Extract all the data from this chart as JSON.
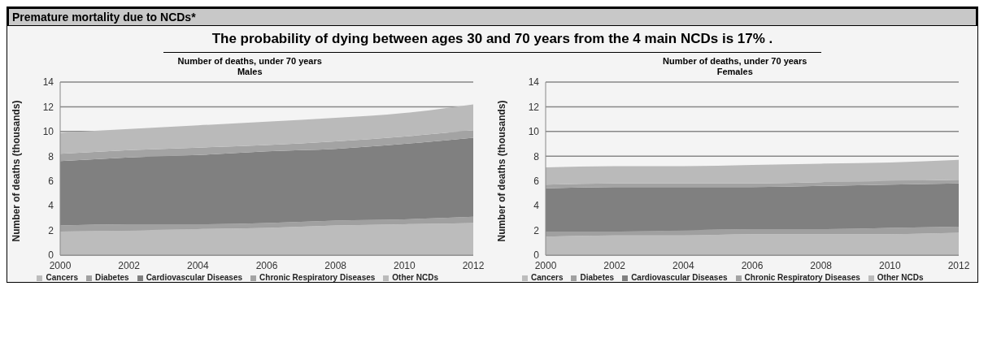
{
  "chart_data": [
    {
      "type": "other",
      "title": "Premature mortality due to NCDs*",
      "subtitle": "The probability of dying between ages 30 and 70 years from the 4 main NCDs is 17% ."
    },
    {
      "type": "area",
      "stacked": true,
      "title": "Number of deaths, under 70 years",
      "subtitle": "Males",
      "ylabel": "Number of deaths (thousands)",
      "x": [
        2000,
        2002,
        2004,
        2006,
        2008,
        2010,
        2012
      ],
      "xlim": [
        2000,
        2012
      ],
      "xticks": [
        2000,
        2002,
        2004,
        2006,
        2008,
        2010,
        2012
      ],
      "ylim": [
        0,
        14
      ],
      "yticks": [
        0,
        2,
        4,
        6,
        8,
        10,
        12,
        14
      ],
      "grid": "y",
      "legend": "bottom",
      "series": [
        {
          "name": "Cancers",
          "color": "#bcbcbc",
          "values": [
            1.9,
            2.0,
            2.1,
            2.2,
            2.4,
            2.5,
            2.6
          ]
        },
        {
          "name": "Diabetes",
          "color": "#a0a0a0",
          "values": [
            0.5,
            0.5,
            0.4,
            0.4,
            0.4,
            0.4,
            0.5
          ]
        },
        {
          "name": "Cardiovascular Diseases",
          "color": "#808080",
          "values": [
            5.2,
            5.4,
            5.6,
            5.8,
            5.8,
            6.1,
            6.4
          ]
        },
        {
          "name": "Chronic Respiratory Diseases",
          "color": "#a3a3a3",
          "values": [
            0.6,
            0.6,
            0.6,
            0.5,
            0.6,
            0.6,
            0.6
          ]
        },
        {
          "name": "Other NCDs",
          "color": "#bababa",
          "values": [
            1.7,
            1.7,
            1.8,
            1.9,
            1.9,
            1.9,
            2.1
          ]
        }
      ]
    },
    {
      "type": "area",
      "stacked": true,
      "title": "Number of deaths, under 70 years",
      "subtitle": "Females",
      "ylabel": "Number of deaths (thousands)",
      "x": [
        2000,
        2002,
        2004,
        2006,
        2008,
        2010,
        2012
      ],
      "xlim": [
        2000,
        2012
      ],
      "xticks": [
        2000,
        2002,
        2004,
        2006,
        2008,
        2010,
        2012
      ],
      "ylim": [
        0,
        14
      ],
      "yticks": [
        0,
        2,
        4,
        6,
        8,
        10,
        12,
        14
      ],
      "grid": "y",
      "legend": "bottom",
      "series": [
        {
          "name": "Cancers",
          "color": "#bcbcbc",
          "values": [
            1.5,
            1.6,
            1.6,
            1.7,
            1.7,
            1.7,
            1.8
          ]
        },
        {
          "name": "Diabetes",
          "color": "#a0a0a0",
          "values": [
            0.4,
            0.3,
            0.4,
            0.4,
            0.4,
            0.5,
            0.5
          ]
        },
        {
          "name": "Cardiovascular Diseases",
          "color": "#808080",
          "values": [
            3.5,
            3.6,
            3.5,
            3.4,
            3.5,
            3.5,
            3.5
          ]
        },
        {
          "name": "Chronic Respiratory Diseases",
          "color": "#a3a3a3",
          "values": [
            0.3,
            0.3,
            0.3,
            0.3,
            0.3,
            0.3,
            0.3
          ]
        },
        {
          "name": "Other NCDs",
          "color": "#bababa",
          "values": [
            1.4,
            1.4,
            1.4,
            1.5,
            1.5,
            1.5,
            1.6
          ]
        }
      ]
    }
  ]
}
